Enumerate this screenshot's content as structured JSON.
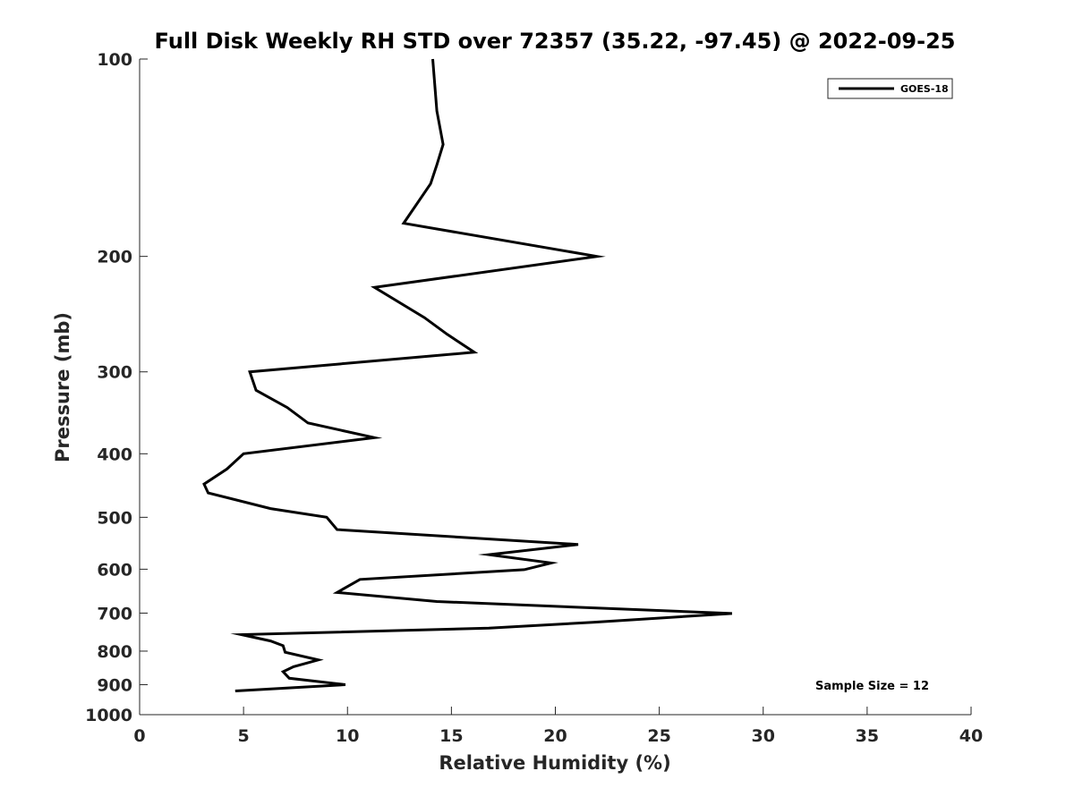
{
  "chart_data": {
    "type": "line",
    "title": "Full Disk Weekly RH STD over 72357 (35.22, -97.45) @ 2022-09-25",
    "xlabel": "Relative Humidity (%)",
    "ylabel": "Pressure (mb)",
    "xlim": [
      0,
      40
    ],
    "ylim": [
      100,
      1000
    ],
    "yscale": "log",
    "y_reversed": true,
    "xticks": [
      "0",
      "5",
      "10",
      "15",
      "20",
      "25",
      "30",
      "35",
      "40"
    ],
    "yticks": [
      "100",
      "200",
      "300",
      "400",
      "500",
      "600",
      "700",
      "800",
      "900",
      "1000"
    ],
    "grid": false,
    "legend_position": "top-right",
    "series": [
      {
        "name": "GOES-18",
        "color": "#000000",
        "points": [
          [
            14.1,
            100
          ],
          [
            14.3,
            120
          ],
          [
            14.6,
            135
          ],
          [
            14.3,
            145
          ],
          [
            14.0,
            155
          ],
          [
            12.7,
            178
          ],
          [
            22.0,
            200
          ],
          [
            11.3,
            223
          ],
          [
            13.7,
            248
          ],
          [
            14.8,
            263
          ],
          [
            16.1,
            280
          ],
          [
            5.3,
            300
          ],
          [
            5.6,
            320
          ],
          [
            7.1,
            340
          ],
          [
            8.1,
            359
          ],
          [
            11.3,
            378
          ],
          [
            5.0,
            400
          ],
          [
            4.2,
            422
          ],
          [
            3.1,
            445
          ],
          [
            3.3,
            459
          ],
          [
            6.3,
            485
          ],
          [
            9.0,
            500
          ],
          [
            9.5,
            522
          ],
          [
            21.1,
            550
          ],
          [
            16.8,
            570
          ],
          [
            19.8,
            587
          ],
          [
            18.5,
            601
          ],
          [
            10.6,
            622
          ],
          [
            9.5,
            651
          ],
          [
            14.3,
            672
          ],
          [
            28.5,
            701
          ],
          [
            21.8,
            723
          ],
          [
            16.8,
            738
          ],
          [
            4.9,
            755
          ],
          [
            6.3,
            772
          ],
          [
            6.9,
            785
          ],
          [
            7.0,
            803
          ],
          [
            8.6,
            825
          ],
          [
            7.4,
            845
          ],
          [
            6.9,
            860
          ],
          [
            7.2,
            880
          ],
          [
            9.9,
            900
          ],
          [
            4.6,
            920
          ]
        ]
      }
    ],
    "annotations": [
      "Sample Size = 12"
    ]
  }
}
